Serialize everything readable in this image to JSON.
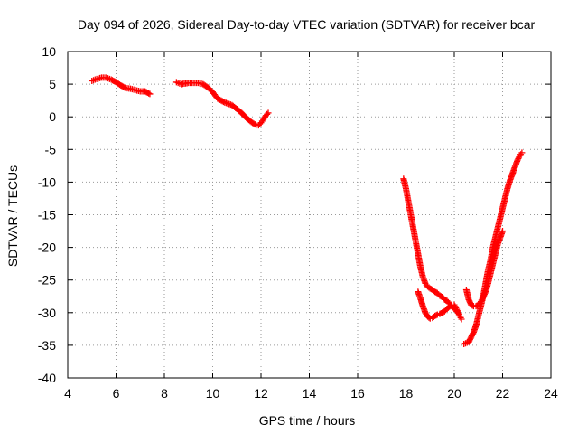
{
  "chart_data": {
    "type": "scatter",
    "title": "Day 094 of 2026, Sidereal Day-to-day VTEC variation (SDTVAR) for receiver bcar",
    "xlabel": "GPS time / hours",
    "ylabel": "SDTVAR / TECUs",
    "xlim": [
      4,
      24
    ],
    "ylim": [
      -40,
      10
    ],
    "xticks": [
      4,
      6,
      8,
      10,
      12,
      14,
      16,
      18,
      20,
      22,
      24
    ],
    "yticks": [
      10,
      5,
      0,
      -5,
      -10,
      -15,
      -20,
      -25,
      -30,
      -35,
      -40
    ],
    "grid": true,
    "marker": "+",
    "color": "#ff0000",
    "series": [
      {
        "x": [
          5.0,
          5.2,
          5.4,
          5.6,
          5.8,
          6.0,
          6.2,
          6.4,
          6.6,
          6.8,
          7.0,
          7.2,
          7.4
        ],
        "y": [
          5.5,
          5.8,
          6.0,
          6.0,
          5.7,
          5.3,
          4.8,
          4.4,
          4.3,
          4.1,
          3.9,
          3.9,
          3.5
        ]
      },
      {
        "x": [
          8.5,
          8.7,
          9.0,
          9.2,
          9.4,
          9.6,
          9.8,
          10.0,
          10.2,
          10.5,
          10.8,
          11.0,
          11.2,
          11.4,
          11.6,
          11.8,
          11.9,
          12.0,
          12.1,
          12.2,
          12.3
        ],
        "y": [
          5.3,
          5.0,
          5.2,
          5.2,
          5.2,
          5.0,
          4.5,
          3.8,
          2.8,
          2.2,
          1.8,
          1.2,
          0.6,
          -0.2,
          -0.8,
          -1.3,
          -1.3,
          -0.9,
          -0.4,
          0.2,
          0.6
        ]
      },
      {
        "x": [
          17.9,
          18.0,
          18.1,
          18.2,
          18.3,
          18.4,
          18.5,
          18.6,
          18.7,
          18.8,
          18.9,
          19.0,
          19.1,
          19.2,
          19.3,
          19.4,
          19.5,
          19.6,
          19.7,
          19.8,
          19.9,
          20.0,
          20.1,
          20.2
        ],
        "y": [
          -9.5,
          -11.0,
          -13.0,
          -15.0,
          -17.0,
          -19.0,
          -21.0,
          -23.0,
          -24.5,
          -25.5,
          -26.0,
          -26.3,
          -26.5,
          -26.8,
          -27.0,
          -27.4,
          -27.6,
          -28.0,
          -28.2,
          -28.6,
          -29.0,
          -29.4,
          -29.8,
          -30.2
        ]
      },
      {
        "x": [
          18.5,
          18.6,
          18.7,
          18.8,
          18.9,
          19.0,
          19.1,
          19.2,
          19.3,
          19.4,
          19.5,
          19.6,
          19.7,
          19.8,
          19.9,
          20.0,
          20.1,
          20.2,
          20.3
        ],
        "y": [
          -26.8,
          -27.8,
          -29.0,
          -30.0,
          -30.6,
          -30.9,
          -30.8,
          -30.5,
          -30.3,
          -30.2,
          -30.0,
          -29.8,
          -29.4,
          -29.1,
          -28.8,
          -28.8,
          -29.5,
          -30.3,
          -31.0
        ]
      },
      {
        "x": [
          20.5,
          20.6,
          20.7,
          20.8,
          20.9,
          21.0,
          21.1,
          21.2,
          21.3,
          21.4,
          21.5,
          21.6,
          21.7,
          21.8,
          21.9,
          22.0
        ],
        "y": [
          -26.5,
          -28.0,
          -28.8,
          -29.0,
          -29.0,
          -28.8,
          -28.3,
          -27.6,
          -26.8,
          -25.5,
          -24.0,
          -22.5,
          -21.0,
          -19.5,
          -18.5,
          -17.5
        ]
      },
      {
        "x": [
          20.4,
          20.6,
          20.8,
          20.9,
          21.0,
          21.1,
          21.2,
          21.3,
          21.4,
          21.5,
          21.6,
          21.7,
          21.8,
          21.9,
          22.0,
          22.1,
          22.2,
          22.3,
          22.4,
          22.5,
          22.6,
          22.7,
          22.8
        ],
        "y": [
          -34.8,
          -34.5,
          -33.0,
          -32.0,
          -30.5,
          -29.0,
          -27.5,
          -25.5,
          -23.5,
          -22.0,
          -20.0,
          -18.5,
          -17.0,
          -15.5,
          -14.0,
          -12.5,
          -11.0,
          -9.8,
          -8.8,
          -7.8,
          -6.8,
          -6.0,
          -5.5
        ]
      }
    ]
  }
}
